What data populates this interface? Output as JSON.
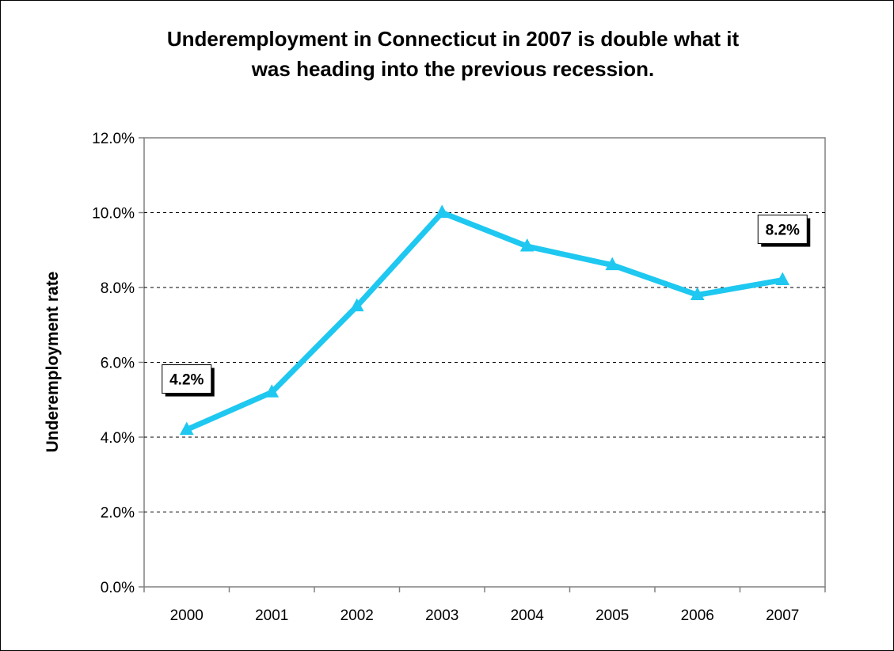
{
  "chart_data": {
    "type": "line",
    "title_lines": [
      "Underemployment in Connecticut in 2007 is double what it",
      "was heading into the previous recession."
    ],
    "xlabel": "",
    "ylabel": "Underemployment rate",
    "categories": [
      "2000",
      "2001",
      "2002",
      "2003",
      "2004",
      "2005",
      "2006",
      "2007"
    ],
    "series": [
      {
        "values": [
          4.2,
          5.2,
          7.5,
          10.0,
          9.1,
          8.6,
          7.8,
          8.2
        ],
        "color": "#1ec8f0",
        "marker": "triangle"
      }
    ],
    "ylim": [
      0,
      12
    ],
    "yticks": [
      0,
      2,
      4,
      6,
      8,
      10,
      12
    ],
    "ytick_labels": [
      "0.0%",
      "2.0%",
      "4.0%",
      "6.0%",
      "8.0%",
      "10.0%",
      "12.0%"
    ],
    "grid": "dashed horizontal",
    "legend": "none",
    "data_labels": [
      {
        "index": 0,
        "text": "4.2%"
      },
      {
        "index": 7,
        "text": "8.2%"
      }
    ]
  }
}
